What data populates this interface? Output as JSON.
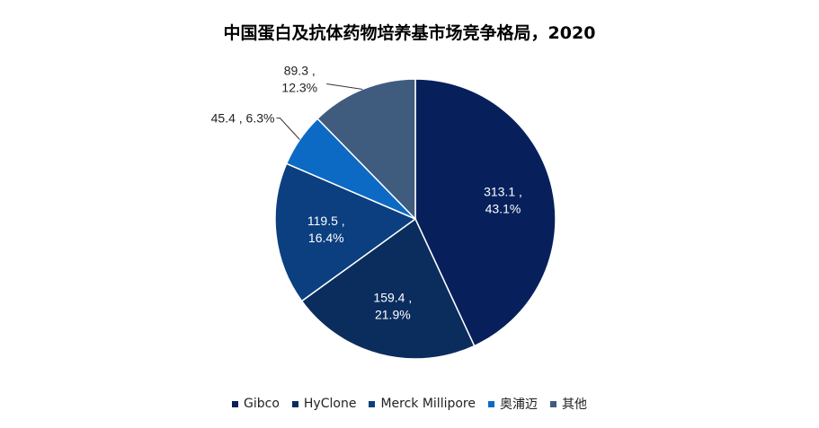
{
  "chart_data": {
    "type": "pie",
    "title": "中国蛋白及抗体药物培养基市场竞争格局，2020",
    "slices": [
      {
        "name": "Gibco",
        "value": 313.1,
        "percent_label": "43.1%",
        "value_label": "313.1 ,",
        "color": "#07205c"
      },
      {
        "name": "HyClone",
        "value": 159.4,
        "percent_label": "21.9%",
        "value_label": "159.4 ,",
        "color": "#0b2d5e"
      },
      {
        "name": "Merck Millipore",
        "value": 119.5,
        "percent_label": "16.4%",
        "value_label": "119.5 ,",
        "color": "#0b3f80"
      },
      {
        "name": "奥浦迈",
        "value": 45.4,
        "percent_label": "6.3%",
        "value_label": "45.4 , 6.3%",
        "color": "#0d6ac4"
      },
      {
        "name": "其他",
        "value": 89.3,
        "percent_label": "12.3%",
        "value_label": "89.3 ,",
        "color": "#3f5c7f"
      }
    ],
    "legend_placement": "bottom"
  }
}
